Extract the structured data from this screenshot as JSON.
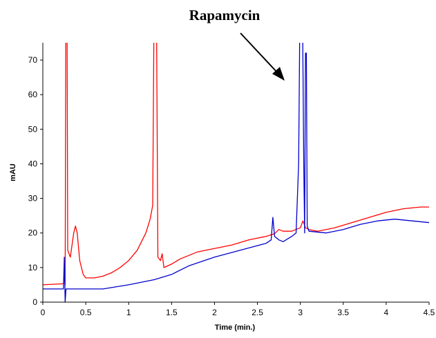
{
  "chart_data": {
    "type": "line",
    "annotation": "Rapamycin",
    "x_label": "Time (min.)",
    "y_label": "mAU",
    "xlim": [
      0,
      4.5
    ],
    "xticks": [
      0,
      0.5,
      1,
      1.5,
      2,
      2.5,
      3,
      3.5,
      4,
      4.5
    ],
    "ylim": [
      0,
      75
    ],
    "yticks": [
      0,
      10,
      20,
      30,
      40,
      50,
      60,
      70
    ],
    "grid": false,
    "series": [
      {
        "color": "#ff0000",
        "x": [
          0,
          0.24,
          0.25,
          0.26,
          0.27,
          0.28,
          0.29,
          0.32,
          0.36,
          0.38,
          0.4,
          0.43,
          0.47,
          0.5,
          0.6,
          0.7,
          0.8,
          0.9,
          1.0,
          1.1,
          1.2,
          1.25,
          1.28,
          1.3,
          1.32,
          1.34,
          1.37,
          1.39,
          1.41,
          1.5,
          1.6,
          1.7,
          1.8,
          2.0,
          2.2,
          2.4,
          2.6,
          2.7,
          2.75,
          2.8,
          2.9,
          3.0,
          3.03,
          3.06,
          3.1,
          3.2,
          3.4,
          3.6,
          3.8,
          4.0,
          4.2,
          4.4,
          4.5
        ],
        "values": [
          5,
          5.3,
          8,
          5,
          100,
          100,
          15,
          13,
          20,
          22,
          20,
          12,
          8,
          7,
          7,
          7.5,
          8.5,
          10,
          12,
          15,
          20,
          24,
          28,
          100,
          100,
          13,
          12,
          14,
          10,
          11,
          12.5,
          13.5,
          14.5,
          15.5,
          16.5,
          18,
          19,
          19.8,
          21,
          20.5,
          20.5,
          21.5,
          23.5,
          21.5,
          21,
          20.5,
          21.5,
          23,
          24.5,
          26,
          27,
          27.5,
          27.5
        ]
      },
      {
        "color": "#0000cc",
        "x": [
          0,
          0.24,
          0.25,
          0.26,
          0.27,
          0.5,
          0.7,
          1.0,
          1.3,
          1.5,
          1.7,
          2.0,
          2.3,
          2.6,
          2.66,
          2.68,
          2.7,
          2.75,
          2.8,
          2.9,
          2.95,
          2.98,
          3.0,
          3.02,
          3.04,
          3.05,
          3.06,
          3.07,
          3.08,
          3.1,
          3.3,
          3.5,
          3.7,
          3.9,
          4.1,
          4.3,
          4.5
        ],
        "values": [
          3.8,
          3.8,
          13,
          0,
          3.8,
          3.8,
          3.8,
          5,
          6.5,
          8,
          10.5,
          13,
          15,
          17,
          18,
          24.5,
          19,
          18,
          17.5,
          19,
          20,
          40,
          100,
          100,
          40,
          20,
          72,
          72,
          22,
          20.5,
          20,
          21,
          22.5,
          23.5,
          24,
          23.5,
          23
        ]
      }
    ]
  }
}
